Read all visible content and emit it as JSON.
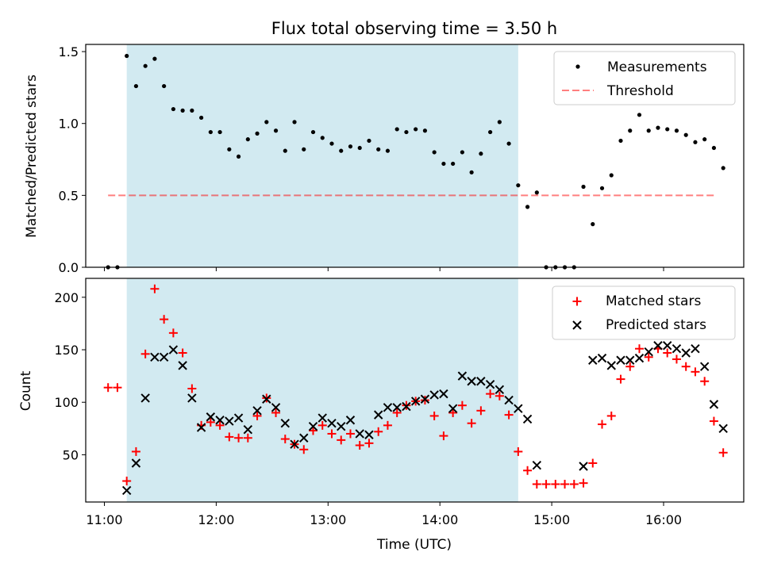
{
  "figure_title": "Flux total observing time = 3.50 h",
  "xlabel": "Time (UTC)",
  "x_ticks": [
    "11:00",
    "12:00",
    "13:00",
    "14:00",
    "15:00",
    "16:00"
  ],
  "colors": {
    "shade": "#add8e6",
    "threshold": "#ff0000",
    "matched": "#ff0000",
    "predicted": "#000000",
    "measurement": "#000000"
  },
  "chart_data": [
    {
      "type": "scatter",
      "title": "Flux total observing time = 3.50 h",
      "xlabel": "",
      "ylabel": "Matched/Predicted stars",
      "xlim": [
        "10:50",
        "16:43"
      ],
      "ylim": [
        0,
        1.55
      ],
      "y_ticks": [
        "0.0",
        "0.5",
        "1.0",
        "1.5"
      ],
      "shaded_interval": [
        "11:12",
        "14:42"
      ],
      "legend_position": "top-right",
      "threshold": {
        "name": "Threshold",
        "value": 0.5,
        "x_range": [
          "11:02",
          "16:28"
        ],
        "style": "dashed"
      },
      "series": [
        {
          "name": "Measurements",
          "marker": "dot",
          "points": [
            [
              "11:02",
              0.0
            ],
            [
              "11:07",
              0.0
            ],
            [
              "11:12",
              1.47
            ],
            [
              "11:17",
              1.26
            ],
            [
              "11:22",
              1.4
            ],
            [
              "11:27",
              1.45
            ],
            [
              "11:32",
              1.26
            ],
            [
              "11:37",
              1.1
            ],
            [
              "11:42",
              1.09
            ],
            [
              "11:47",
              1.09
            ],
            [
              "11:52",
              1.04
            ],
            [
              "11:57",
              0.94
            ],
            [
              "12:02",
              0.94
            ],
            [
              "12:07",
              0.82
            ],
            [
              "12:12",
              0.77
            ],
            [
              "12:17",
              0.89
            ],
            [
              "12:22",
              0.93
            ],
            [
              "12:27",
              1.01
            ],
            [
              "12:32",
              0.95
            ],
            [
              "12:37",
              0.81
            ],
            [
              "12:42",
              1.01
            ],
            [
              "12:47",
              0.82
            ],
            [
              "12:52",
              0.94
            ],
            [
              "12:57",
              0.9
            ],
            [
              "13:02",
              0.86
            ],
            [
              "13:07",
              0.81
            ],
            [
              "13:12",
              0.84
            ],
            [
              "13:17",
              0.83
            ],
            [
              "13:22",
              0.88
            ],
            [
              "13:27",
              0.82
            ],
            [
              "13:32",
              0.81
            ],
            [
              "13:37",
              0.96
            ],
            [
              "13:42",
              0.94
            ],
            [
              "13:47",
              0.96
            ],
            [
              "13:52",
              0.95
            ],
            [
              "13:57",
              0.8
            ],
            [
              "14:02",
              0.72
            ],
            [
              "14:07",
              0.72
            ],
            [
              "14:12",
              0.8
            ],
            [
              "14:17",
              0.66
            ],
            [
              "14:22",
              0.79
            ],
            [
              "14:27",
              0.94
            ],
            [
              "14:32",
              1.01
            ],
            [
              "14:37",
              0.86
            ],
            [
              "14:42",
              0.57
            ],
            [
              "14:47",
              0.42
            ],
            [
              "14:52",
              0.52
            ],
            [
              "14:57",
              0.0
            ],
            [
              "15:02",
              0.0
            ],
            [
              "15:07",
              0.0
            ],
            [
              "15:12",
              0.0
            ],
            [
              "15:17",
              0.56
            ],
            [
              "15:22",
              0.3
            ],
            [
              "15:27",
              0.55
            ],
            [
              "15:32",
              0.64
            ],
            [
              "15:37",
              0.88
            ],
            [
              "15:42",
              0.95
            ],
            [
              "15:47",
              1.06
            ],
            [
              "15:52",
              0.95
            ],
            [
              "15:57",
              0.97
            ],
            [
              "16:02",
              0.96
            ],
            [
              "16:07",
              0.95
            ],
            [
              "16:12",
              0.92
            ],
            [
              "16:17",
              0.87
            ],
            [
              "16:22",
              0.89
            ],
            [
              "16:27",
              0.83
            ],
            [
              "16:32",
              0.69
            ]
          ]
        }
      ]
    },
    {
      "type": "scatter",
      "title": "",
      "xlabel": "Time (UTC)",
      "ylabel": "Count",
      "xlim": [
        "10:50",
        "16:43"
      ],
      "ylim": [
        5,
        218
      ],
      "y_ticks": [
        "50",
        "100",
        "150",
        "200"
      ],
      "shaded_interval": [
        "11:12",
        "14:42"
      ],
      "legend_position": "top-right",
      "series": [
        {
          "name": "Matched stars",
          "marker": "plus",
          "points": [
            [
              "11:02",
              114
            ],
            [
              "11:07",
              114
            ],
            [
              "11:12",
              25
            ],
            [
              "11:17",
              53
            ],
            [
              "11:22",
              146
            ],
            [
              "11:27",
              208
            ],
            [
              "11:32",
              179
            ],
            [
              "11:37",
              166
            ],
            [
              "11:42",
              147
            ],
            [
              "11:47",
              113
            ],
            [
              "11:52",
              78
            ],
            [
              "11:57",
              81
            ],
            [
              "12:02",
              78
            ],
            [
              "12:07",
              67
            ],
            [
              "12:12",
              66
            ],
            [
              "12:17",
              66
            ],
            [
              "12:22",
              87
            ],
            [
              "12:27",
              104
            ],
            [
              "12:32",
              90
            ],
            [
              "12:37",
              65
            ],
            [
              "12:42",
              60
            ],
            [
              "12:47",
              55
            ],
            [
              "12:52",
              73
            ],
            [
              "12:57",
              78
            ],
            [
              "13:02",
              70
            ],
            [
              "13:07",
              64
            ],
            [
              "13:12",
              70
            ],
            [
              "13:17",
              59
            ],
            [
              "13:22",
              61
            ],
            [
              "13:27",
              72
            ],
            [
              "13:32",
              78
            ],
            [
              "13:37",
              90
            ],
            [
              "13:42",
              97
            ],
            [
              "13:47",
              101
            ],
            [
              "13:52",
              102
            ],
            [
              "13:57",
              87
            ],
            [
              "14:02",
              68
            ],
            [
              "14:07",
              90
            ],
            [
              "14:12",
              97
            ],
            [
              "14:17",
              80
            ],
            [
              "14:22",
              92
            ],
            [
              "14:27",
              108
            ],
            [
              "14:32",
              106
            ],
            [
              "14:37",
              88
            ],
            [
              "14:42",
              53
            ],
            [
              "14:47",
              35
            ],
            [
              "14:52",
              22
            ],
            [
              "14:57",
              22
            ],
            [
              "15:02",
              22
            ],
            [
              "15:07",
              22
            ],
            [
              "15:12",
              22
            ],
            [
              "15:17",
              23
            ],
            [
              "15:22",
              42
            ],
            [
              "15:27",
              79
            ],
            [
              "15:32",
              87
            ],
            [
              "15:37",
              122
            ],
            [
              "15:42",
              134
            ],
            [
              "15:47",
              151
            ],
            [
              "15:52",
              143
            ],
            [
              "15:57",
              151
            ],
            [
              "16:02",
              147
            ],
            [
              "16:07",
              141
            ],
            [
              "16:12",
              134
            ],
            [
              "16:17",
              129
            ],
            [
              "16:22",
              120
            ],
            [
              "16:27",
              82
            ],
            [
              "16:32",
              52
            ]
          ]
        },
        {
          "name": "Predicted stars",
          "marker": "x",
          "points": [
            [
              "11:12",
              16
            ],
            [
              "11:17",
              42
            ],
            [
              "11:22",
              104
            ],
            [
              "11:27",
              143
            ],
            [
              "11:32",
              143
            ],
            [
              "11:37",
              150
            ],
            [
              "11:42",
              135
            ],
            [
              "11:47",
              104
            ],
            [
              "11:52",
              76
            ],
            [
              "11:57",
              86
            ],
            [
              "12:02",
              83
            ],
            [
              "12:07",
              82
            ],
            [
              "12:12",
              85
            ],
            [
              "12:17",
              74
            ],
            [
              "12:22",
              92
            ],
            [
              "12:27",
              103
            ],
            [
              "12:32",
              95
            ],
            [
              "12:37",
              80
            ],
            [
              "12:42",
              60
            ],
            [
              "12:47",
              66
            ],
            [
              "12:52",
              77
            ],
            [
              "12:57",
              85
            ],
            [
              "13:02",
              80
            ],
            [
              "13:07",
              77
            ],
            [
              "13:12",
              83
            ],
            [
              "13:17",
              70
            ],
            [
              "13:22",
              69
            ],
            [
              "13:27",
              88
            ],
            [
              "13:32",
              95
            ],
            [
              "13:37",
              95
            ],
            [
              "13:42",
              96
            ],
            [
              "13:47",
              101
            ],
            [
              "13:52",
              103
            ],
            [
              "13:57",
              107
            ],
            [
              "14:02",
              108
            ],
            [
              "14:07",
              94
            ],
            [
              "14:12",
              125
            ],
            [
              "14:17",
              120
            ],
            [
              "14:22",
              120
            ],
            [
              "14:27",
              117
            ],
            [
              "14:32",
              112
            ],
            [
              "14:37",
              102
            ],
            [
              "14:42",
              94
            ],
            [
              "14:47",
              84
            ],
            [
              "14:52",
              40
            ],
            [
              "15:17",
              39
            ],
            [
              "15:22",
              140
            ],
            [
              "15:27",
              142
            ],
            [
              "15:32",
              135
            ],
            [
              "15:37",
              140
            ],
            [
              "15:42",
              140
            ],
            [
              "15:47",
              142
            ],
            [
              "15:52",
              148
            ],
            [
              "15:57",
              154
            ],
            [
              "16:02",
              154
            ],
            [
              "16:07",
              151
            ],
            [
              "16:12",
              147
            ],
            [
              "16:17",
              151
            ],
            [
              "16:22",
              134
            ],
            [
              "16:27",
              98
            ],
            [
              "16:32",
              75
            ]
          ]
        }
      ]
    }
  ]
}
